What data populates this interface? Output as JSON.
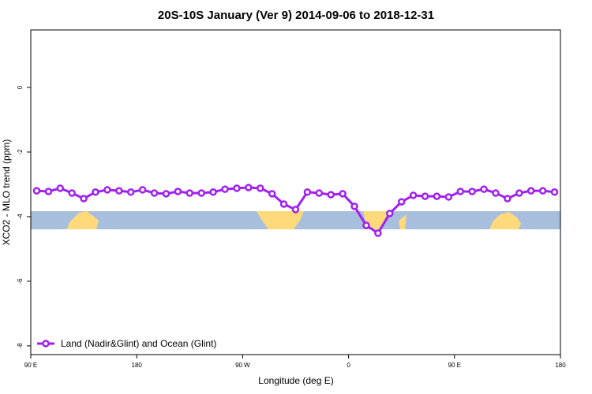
{
  "chart_data": {
    "type": "line",
    "title": "20S-10S January (Ver 9)   2014-09-06 to 2018-12-31",
    "x_label": "Longitude (deg E)",
    "y_label": "XCO2 - MLO trend (ppm)",
    "x": [
      95,
      105,
      115,
      125,
      135,
      145,
      155,
      165,
      175,
      185,
      195,
      205,
      215,
      225,
      235,
      245,
      255,
      265,
      275,
      285,
      295,
      305,
      315,
      325,
      335,
      345,
      355,
      365,
      375,
      385,
      395,
      405,
      415,
      425,
      435,
      445,
      455,
      465,
      475,
      485,
      495,
      505,
      515,
      525,
      535
    ],
    "series": [
      {
        "name": "Land (Nadir&Glint) and Ocean (Glint)",
        "color": "#a020f0",
        "values": [
          -3.2,
          -3.22,
          -3.12,
          -3.27,
          -3.44,
          -3.24,
          -3.17,
          -3.2,
          -3.24,
          -3.17,
          -3.27,
          -3.29,
          -3.22,
          -3.27,
          -3.27,
          -3.24,
          -3.15,
          -3.12,
          -3.1,
          -3.12,
          -3.29,
          -3.61,
          -3.78,
          -3.24,
          -3.27,
          -3.32,
          -3.29,
          -3.68,
          -4.27,
          -4.51,
          -3.9,
          -3.54,
          -3.34,
          -3.37,
          -3.37,
          -3.39,
          -3.22,
          -3.22,
          -3.15,
          -3.27,
          -3.44,
          -3.27,
          -3.2,
          -3.2,
          -3.24
        ]
      }
    ],
    "xlim": [
      90,
      540
    ],
    "xticks": [
      {
        "value": 90,
        "label": "90 E"
      },
      {
        "value": 180,
        "label": "180"
      },
      {
        "value": 270,
        "label": "90 W"
      },
      {
        "value": 360,
        "label": "0"
      },
      {
        "value": 450,
        "label": "90 E"
      },
      {
        "value": 540,
        "label": "180"
      }
    ],
    "ylim": [
      -8.27,
      1.78
    ],
    "yticks": [
      0,
      -2,
      -4,
      -6,
      -8
    ],
    "legend": "bottom-left"
  }
}
